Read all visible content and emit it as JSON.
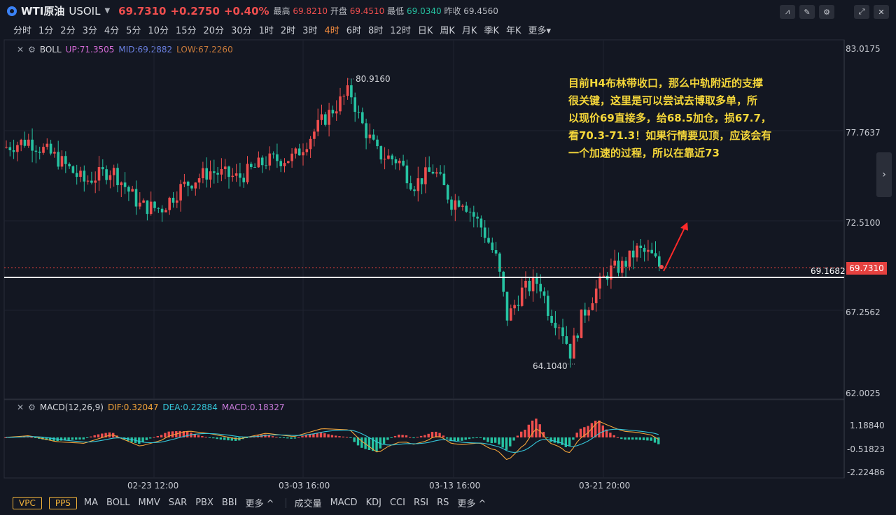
{
  "header": {
    "name": "WTI原油",
    "code": "USOIL",
    "price": "69.7310",
    "change": "+0.2750",
    "change_pct": "+0.40%",
    "high_label": "最高",
    "high": "69.8210",
    "open_label": "开盘",
    "open": "69.4510",
    "low_label": "最低",
    "low": "69.0340",
    "prev_label": "昨收",
    "prev": "69.4560"
  },
  "periods": [
    "分时",
    "1分",
    "2分",
    "3分",
    "4分",
    "5分",
    "10分",
    "15分",
    "20分",
    "30分",
    "1时",
    "2时",
    "3时",
    "4时",
    "6时",
    "8时",
    "12时",
    "日K",
    "周K",
    "月K",
    "季K",
    "年K",
    "更多▾"
  ],
  "active_period": "4时",
  "boll": {
    "name": "BOLL",
    "up": "UP:71.3505",
    "mid": "MID:69.2882",
    "low": "LOW:67.2260",
    "colors": {
      "up": "#d46ad6",
      "mid": "#6a7fe0",
      "low": "#c87a3a"
    }
  },
  "macd": {
    "name": "MACD(12,26,9)",
    "dif": "DIF:0.32047",
    "dea": "DEA:0.22884",
    "macd": "MACD:0.18327"
  },
  "price_axis": [
    "83.0175",
    "77.7637",
    "72.5100",
    "67.2562",
    "62.0025"
  ],
  "macd_axis": [
    "1.18840",
    "-0.51823",
    "-2.22486"
  ],
  "current_price_tag": "69.7310",
  "line_tag": "69.1682",
  "hi_label": "80.9160",
  "lo_label": "64.1040",
  "annotation": [
    "目前H4布林带收口，那么中轨附近的支撑",
    "很关键，这里是可以尝试去博取多单，所",
    "以现价69直接多，给68.5加仓，损67.7，",
    "看70.3-71.3！如果行情要见顶，应该会有",
    "一个加速的过程，所以在靠近73"
  ],
  "x_axis": [
    "02-23 12:00",
    "03-03 16:00",
    "03-13 16:00",
    "03-21 20:00"
  ],
  "footer": {
    "badges": [
      "VPC",
      "PPS"
    ],
    "main_inds": [
      "MA",
      "BOLL",
      "MMV",
      "SAR",
      "PBX",
      "BBI",
      "更多 ^"
    ],
    "sub_inds": [
      "成交量",
      "MACD",
      "KDJ",
      "CCI",
      "RSI",
      "RS",
      "更多 ^"
    ]
  },
  "colors": {
    "up": "#ef4e4e",
    "down": "#26c3a2",
    "accent": "#f28b3e",
    "annotation": "#f5d73a"
  },
  "icons": [
    "indicator-tool-icon",
    "draw-tool-icon",
    "settings-icon",
    "expand-icon",
    "close-icon"
  ]
}
